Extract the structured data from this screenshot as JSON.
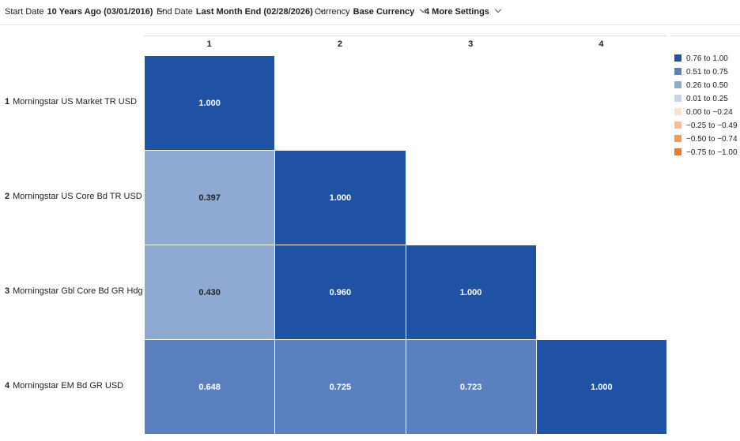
{
  "settings": [
    {
      "label": "Start Date",
      "value": "10 Years Ago (03/01/2016)"
    },
    {
      "label": "End Date",
      "value": "Last Month End (02/28/2026)"
    },
    {
      "label": "Currency",
      "value": "Base Currency"
    },
    {
      "label": null,
      "value": "4 More Settings"
    }
  ],
  "matrix": {
    "columns": [
      "1",
      "2",
      "3",
      "4"
    ],
    "rows": [
      {
        "index": "1",
        "name": "Morningstar US Market TR USD",
        "cells": [
          {
            "value": "1.000",
            "color": "#2052a3"
          }
        ]
      },
      {
        "index": "2",
        "name": "Morningstar US Core Bd TR USD",
        "cells": [
          {
            "value": "0.397",
            "color": "#8eaad3"
          },
          {
            "value": "1.000",
            "color": "#2052a3"
          }
        ]
      },
      {
        "index": "3",
        "name": "Morningstar Gbl Core Bd GR Hdg USD",
        "cells": [
          {
            "value": "0.430",
            "color": "#8eaad3"
          },
          {
            "value": "0.960",
            "color": "#2052a3"
          },
          {
            "value": "1.000",
            "color": "#2052a3"
          }
        ]
      },
      {
        "index": "4",
        "name": "Morningstar EM Bd GR USD",
        "cells": [
          {
            "value": "0.648",
            "color": "#5a80bf"
          },
          {
            "value": "0.725",
            "color": "#5a80bf"
          },
          {
            "value": "0.723",
            "color": "#5a80bf"
          },
          {
            "value": "1.000",
            "color": "#2052a3"
          }
        ]
      }
    ]
  },
  "legend": [
    {
      "label": "0.76 to 1.00",
      "color": "#2052a3"
    },
    {
      "label": "0.51 to 0.75",
      "color": "#5a80bf"
    },
    {
      "label": "0.26 to 0.50",
      "color": "#8eaad3"
    },
    {
      "label": "0.01 to 0.25",
      "color": "#c8d5ea"
    },
    {
      "label": "0.00 to −0.24",
      "color": "#fbe2cd"
    },
    {
      "label": "−0.25 to −0.49",
      "color": "#f7bf98"
    },
    {
      "label": "−0.50 to −0.74",
      "color": "#f29a5e"
    },
    {
      "label": "−0.75 to −1.00",
      "color": "#ec7a2c"
    }
  ]
}
